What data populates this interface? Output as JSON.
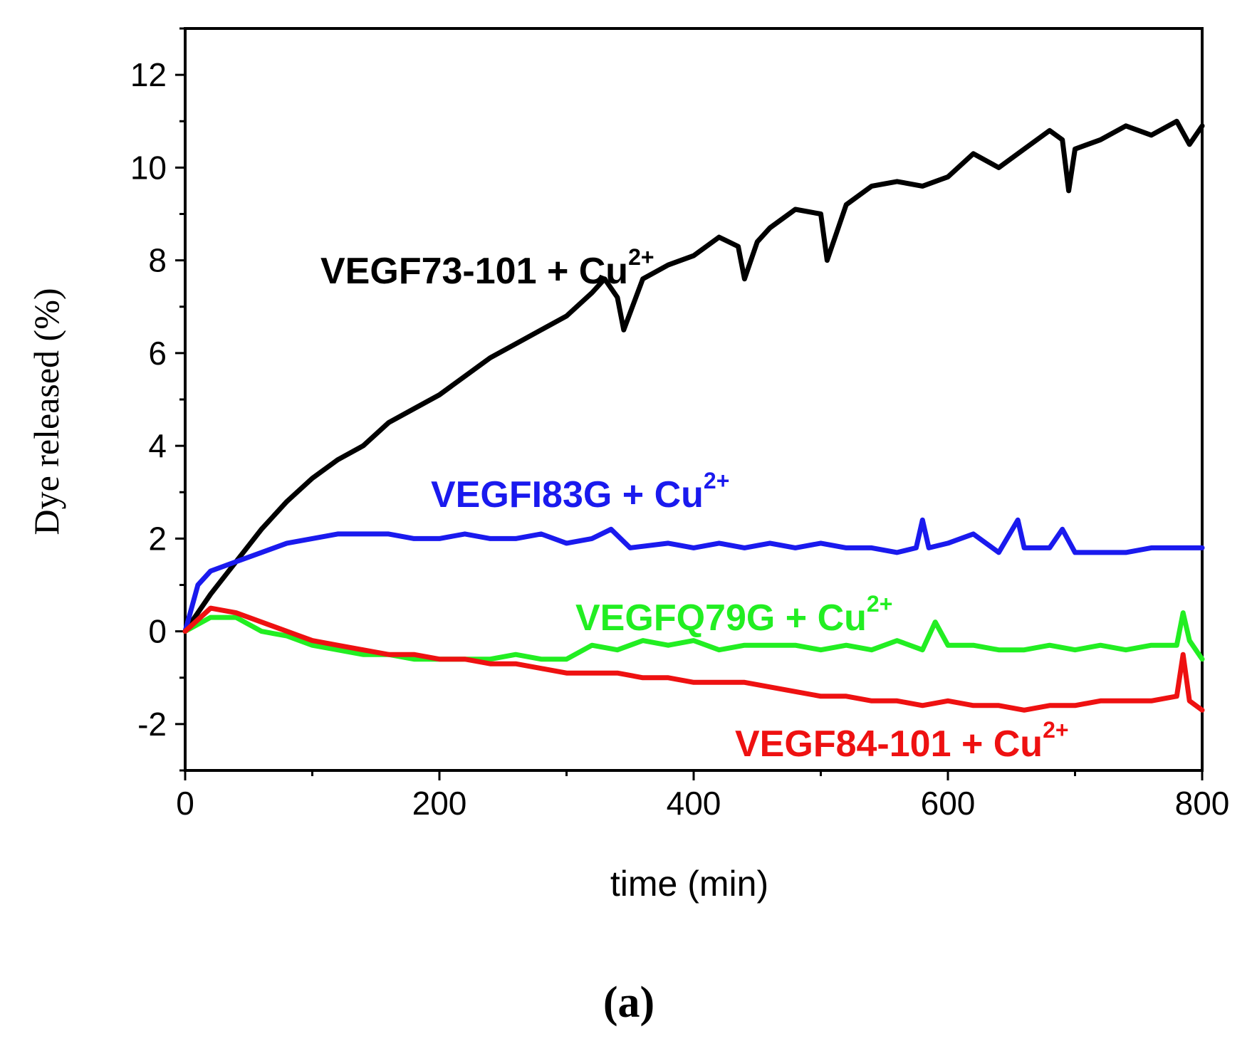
{
  "chart_data": {
    "type": "line",
    "title": "",
    "xlabel": "time (min)",
    "ylabel": "Dye released (%)",
    "xlim": [
      0,
      800
    ],
    "ylim": [
      -3,
      13
    ],
    "xticks": [
      "0",
      "200",
      "400",
      "600",
      "800"
    ],
    "xtick_values": [
      0,
      200,
      400,
      600,
      800
    ],
    "yticks": [
      "-2",
      "0",
      "2",
      "4",
      "6",
      "8",
      "10",
      "12"
    ],
    "ytick_values": [
      -2,
      0,
      2,
      4,
      6,
      8,
      10,
      12
    ],
    "grid": false,
    "panel_label": "(a)",
    "series": [
      {
        "name": "VEGF73-101 + Cu2+",
        "label_main": "VEGF73-101 + Cu",
        "label_sup": "2+",
        "color": "#000000",
        "x": [
          0,
          20,
          40,
          60,
          80,
          100,
          120,
          140,
          160,
          180,
          200,
          220,
          240,
          260,
          280,
          300,
          320,
          330,
          340,
          345,
          360,
          380,
          400,
          420,
          435,
          440,
          450,
          460,
          480,
          500,
          505,
          520,
          540,
          560,
          580,
          600,
          620,
          640,
          660,
          680,
          690,
          695,
          700,
          720,
          740,
          760,
          780,
          790,
          800
        ],
        "y": [
          0,
          0.8,
          1.5,
          2.2,
          2.8,
          3.3,
          3.7,
          4.0,
          4.5,
          4.8,
          5.1,
          5.5,
          5.9,
          6.2,
          6.5,
          6.8,
          7.3,
          7.6,
          7.2,
          6.5,
          7.6,
          7.9,
          8.1,
          8.5,
          8.3,
          7.6,
          8.4,
          8.7,
          9.1,
          9.0,
          8.0,
          9.2,
          9.6,
          9.7,
          9.6,
          9.8,
          10.3,
          10.0,
          10.4,
          10.8,
          10.6,
          9.5,
          10.4,
          10.6,
          10.9,
          10.7,
          11.0,
          10.5,
          10.9
        ]
      },
      {
        "name": "VEGFI83G + Cu2+",
        "label_main": "VEGFI83G + Cu",
        "label_sup": "2+",
        "color": "#1a1aee",
        "x": [
          0,
          10,
          20,
          40,
          60,
          80,
          100,
          120,
          140,
          160,
          180,
          200,
          220,
          240,
          260,
          280,
          300,
          320,
          335,
          350,
          380,
          400,
          420,
          440,
          460,
          480,
          500,
          520,
          540,
          560,
          575,
          580,
          585,
          600,
          620,
          640,
          655,
          660,
          680,
          690,
          700,
          720,
          740,
          760,
          780,
          800
        ],
        "y": [
          0,
          1.0,
          1.3,
          1.5,
          1.7,
          1.9,
          2.0,
          2.1,
          2.1,
          2.1,
          2.0,
          2.0,
          2.1,
          2.0,
          2.0,
          2.1,
          1.9,
          2.0,
          2.2,
          1.8,
          1.9,
          1.8,
          1.9,
          1.8,
          1.9,
          1.8,
          1.9,
          1.8,
          1.8,
          1.7,
          1.8,
          2.4,
          1.8,
          1.9,
          2.1,
          1.7,
          2.4,
          1.8,
          1.8,
          2.2,
          1.7,
          1.7,
          1.7,
          1.8,
          1.8,
          1.8
        ]
      },
      {
        "name": "VEGFQ79G + Cu2+",
        "label_main": "VEGFQ79G + Cu",
        "label_sup": "2+",
        "color": "#22ee22",
        "x": [
          0,
          20,
          40,
          60,
          80,
          100,
          120,
          140,
          160,
          180,
          200,
          220,
          240,
          260,
          280,
          300,
          320,
          340,
          360,
          380,
          400,
          420,
          440,
          460,
          480,
          500,
          520,
          540,
          560,
          580,
          590,
          600,
          620,
          640,
          660,
          680,
          700,
          720,
          740,
          760,
          780,
          785,
          790,
          800
        ],
        "y": [
          0,
          0.3,
          0.3,
          0.0,
          -0.1,
          -0.3,
          -0.4,
          -0.5,
          -0.5,
          -0.6,
          -0.6,
          -0.6,
          -0.6,
          -0.5,
          -0.6,
          -0.6,
          -0.3,
          -0.4,
          -0.2,
          -0.3,
          -0.2,
          -0.4,
          -0.3,
          -0.3,
          -0.3,
          -0.4,
          -0.3,
          -0.4,
          -0.2,
          -0.4,
          0.2,
          -0.3,
          -0.3,
          -0.4,
          -0.4,
          -0.3,
          -0.4,
          -0.3,
          -0.4,
          -0.3,
          -0.3,
          0.4,
          -0.2,
          -0.6
        ]
      },
      {
        "name": "VEGF84-101 + Cu2+",
        "label_main": "VEGF84-101 + Cu",
        "label_sup": "2+",
        "color": "#ee1111",
        "x": [
          0,
          20,
          40,
          60,
          80,
          100,
          120,
          140,
          160,
          180,
          200,
          220,
          240,
          260,
          280,
          300,
          320,
          340,
          360,
          380,
          400,
          420,
          440,
          460,
          480,
          500,
          520,
          540,
          560,
          580,
          600,
          620,
          640,
          660,
          680,
          700,
          720,
          740,
          760,
          780,
          785,
          790,
          800
        ],
        "y": [
          0,
          0.5,
          0.4,
          0.2,
          0.0,
          -0.2,
          -0.3,
          -0.4,
          -0.5,
          -0.5,
          -0.6,
          -0.6,
          -0.7,
          -0.7,
          -0.8,
          -0.9,
          -0.9,
          -0.9,
          -1.0,
          -1.0,
          -1.1,
          -1.1,
          -1.1,
          -1.2,
          -1.3,
          -1.4,
          -1.4,
          -1.5,
          -1.5,
          -1.6,
          -1.5,
          -1.6,
          -1.6,
          -1.7,
          -1.6,
          -1.6,
          -1.5,
          -1.5,
          -1.5,
          -1.4,
          -0.5,
          -1.5,
          -1.7
        ]
      }
    ]
  }
}
